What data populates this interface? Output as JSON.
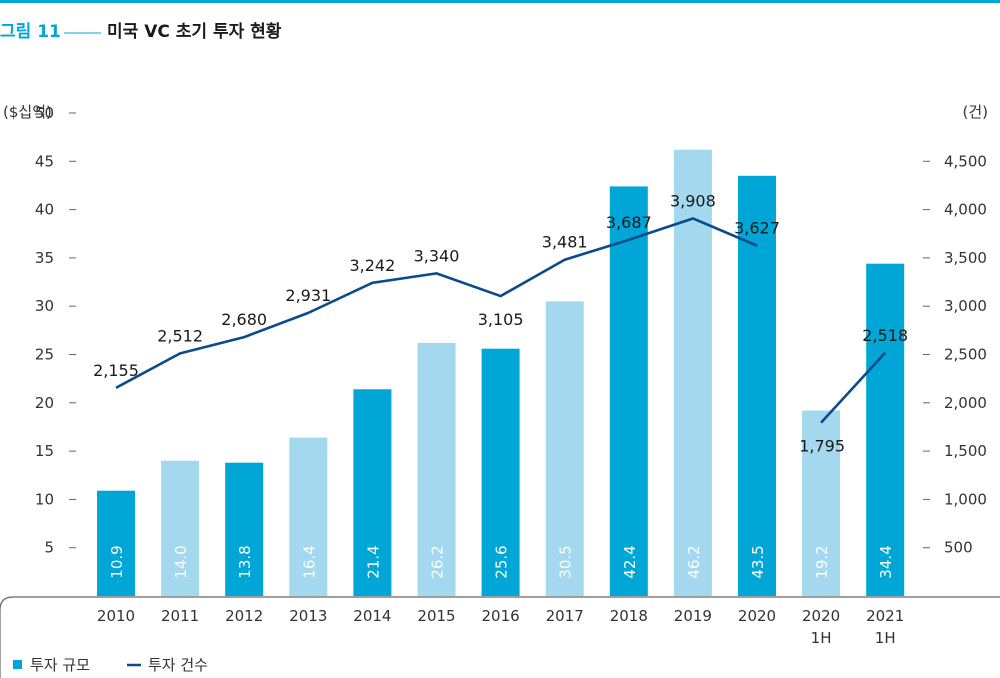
{
  "figure": {
    "number_label": "그림 11",
    "title": "미국 VC 초기 투자 현황"
  },
  "colors": {
    "accent": "#00a6d6",
    "bar_dark": "#00a6d6",
    "bar_light": "#a3d8ee",
    "line": "#0b4a8b",
    "axis": "#666666"
  },
  "chart_data": {
    "type": "bar",
    "categories": [
      "2010",
      "2011",
      "2012",
      "2013",
      "2014",
      "2015",
      "2016",
      "2017",
      "2018",
      "2019",
      "2020",
      "2020\n1H",
      "2021\n1H"
    ],
    "y_left": {
      "unit_label": "($십억)",
      "ylim": [
        0,
        50
      ],
      "ticks": [
        5,
        10,
        15,
        20,
        25,
        30,
        35,
        40,
        45,
        50
      ]
    },
    "y_right": {
      "unit_label": "(건)",
      "ylim": [
        0,
        5000
      ],
      "ticks": [
        "500",
        "1,000",
        "1,500",
        "2,000",
        "2,500",
        "3,000",
        "3,500",
        "4,000",
        "4,500"
      ],
      "tick_values": [
        500,
        1000,
        1500,
        2000,
        2500,
        3000,
        3500,
        4000,
        4500
      ]
    },
    "series": [
      {
        "name": "투자 규모",
        "kind": "bar",
        "axis": "left",
        "values": [
          10.9,
          14.0,
          13.8,
          16.4,
          21.4,
          26.2,
          25.6,
          30.5,
          42.4,
          46.2,
          43.5,
          19.2,
          34.4
        ],
        "labels": [
          "10.9",
          "14.0",
          "13.8",
          "16.4",
          "21.4",
          "26.2",
          "25.6",
          "30.5",
          "42.4",
          "46.2",
          "43.5",
          "19.2",
          "34.4"
        ],
        "shade": [
          "dark",
          "light",
          "dark",
          "light",
          "dark",
          "light",
          "dark",
          "light",
          "dark",
          "light",
          "dark",
          "light",
          "dark"
        ]
      },
      {
        "name": "투자 건수",
        "kind": "line",
        "axis": "right",
        "values": [
          2155,
          2512,
          2680,
          2931,
          3242,
          3340,
          3105,
          3481,
          3687,
          3908,
          3627,
          1795,
          2518
        ],
        "labels": [
          "2,155",
          "2,512",
          "2,680",
          "2,931",
          "3,242",
          "3,340",
          "3,105",
          "3,481",
          "3,687",
          "3,908",
          "3,627",
          "1,795",
          "2,518"
        ],
        "segments": [
          [
            0,
            10
          ],
          [
            11,
            12
          ]
        ]
      }
    ],
    "legend": {
      "placement": "bottom-left"
    },
    "grid": false
  }
}
